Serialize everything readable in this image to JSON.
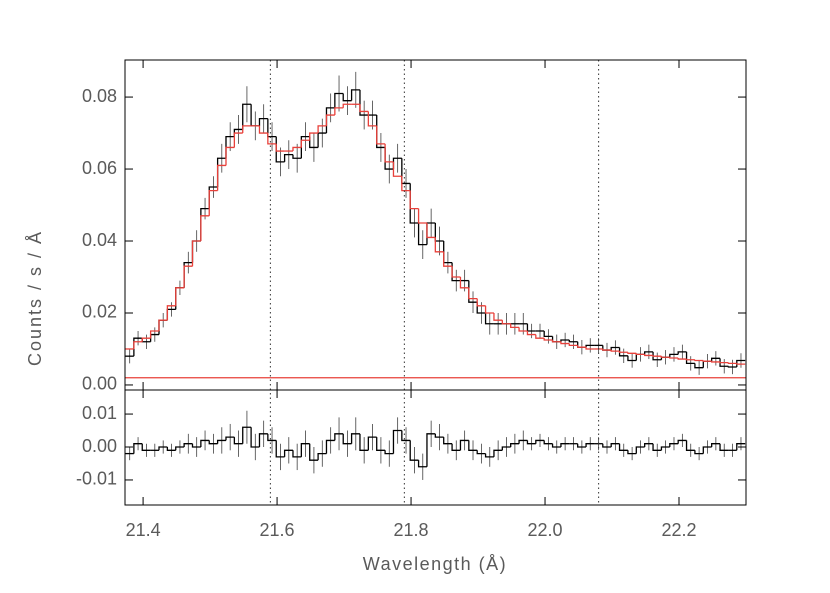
{
  "chart_data": [
    {
      "type": "step",
      "ylabel": "Counts / s / Å",
      "xlim": [
        21.373,
        22.3
      ],
      "ylim": [
        -0.0014,
        0.0903
      ],
      "yticks": [
        {
          "value": 0,
          "label": "0.00"
        },
        {
          "value": 0.02,
          "label": "0.02"
        },
        {
          "value": 0.04,
          "label": "0.04"
        },
        {
          "value": 0.06,
          "label": "0.06"
        },
        {
          "value": 0.08,
          "label": "0.08"
        }
      ],
      "vlines": [
        21.59,
        21.79,
        22.08
      ],
      "hlines": [
        {
          "value": 0.002,
          "color": "#e8403a"
        }
      ],
      "x": [
        21.38,
        21.3925,
        21.405,
        21.4175,
        21.43,
        21.4425,
        21.455,
        21.4675,
        21.48,
        21.4925,
        21.505,
        21.5175,
        21.53,
        21.5425,
        21.555,
        21.5675,
        21.58,
        21.5925,
        21.605,
        21.6175,
        21.63,
        21.6425,
        21.655,
        21.6675,
        21.68,
        21.6925,
        21.705,
        21.7175,
        21.73,
        21.7425,
        21.755,
        21.7675,
        21.78,
        21.7925,
        21.805,
        21.8175,
        21.83,
        21.8425,
        21.855,
        21.8675,
        21.88,
        21.8925,
        21.905,
        21.9175,
        21.93,
        21.9425,
        21.955,
        21.9675,
        21.98,
        21.9925,
        22.005,
        22.0175,
        22.03,
        22.0425,
        22.055,
        22.0675,
        22.08,
        22.0925,
        22.105,
        22.1175,
        22.13,
        22.1425,
        22.155,
        22.1675,
        22.18,
        22.1925,
        22.205,
        22.2175,
        22.23,
        22.2425,
        22.255,
        22.2675,
        22.28,
        22.2925
      ],
      "series": [
        {
          "color": "#000000",
          "values": [
            0.008,
            0.013,
            0.012,
            0.014,
            0.018,
            0.021,
            0.027,
            0.034,
            0.04,
            0.049,
            0.055,
            0.063,
            0.069,
            0.071,
            0.078,
            0.072,
            0.074,
            0.069,
            0.062,
            0.064,
            0.063,
            0.069,
            0.066,
            0.07,
            0.077,
            0.081,
            0.079,
            0.082,
            0.075,
            0.075,
            0.066,
            0.06,
            0.063,
            0.056,
            0.045,
            0.039,
            0.045,
            0.04,
            0.034,
            0.029,
            0.029,
            0.023,
            0.02,
            0.017,
            0.017,
            0.017,
            0.017,
            0.017,
            0.015,
            0.015,
            0.0135,
            0.012,
            0.0125,
            0.012,
            0.0105,
            0.011,
            0.011,
            0.0097,
            0.0104,
            0.0081,
            0.0068,
            0.0085,
            0.0092,
            0.007,
            0.0077,
            0.0085,
            0.0092,
            0.006,
            0.0048,
            0.0066,
            0.0074,
            0.0052,
            0.005,
            0.0068
          ],
          "errors": [
            0.002,
            0.002,
            0.002,
            0.002,
            0.002,
            0.002,
            0.002,
            0.003,
            0.003,
            0.003,
            0.003,
            0.004,
            0.004,
            0.004,
            0.005,
            0.004,
            0.004,
            0.004,
            0.004,
            0.004,
            0.004,
            0.004,
            0.004,
            0.004,
            0.004,
            0.005,
            0.004,
            0.005,
            0.004,
            0.004,
            0.004,
            0.004,
            0.004,
            0.004,
            0.004,
            0.004,
            0.004,
            0.004,
            0.003,
            0.003,
            0.003,
            0.003,
            0.003,
            0.003,
            0.003,
            0.003,
            0.003,
            0.003,
            0.002,
            0.002,
            0.002,
            0.002,
            0.002,
            0.002,
            0.002,
            0.002,
            0.002,
            0.002,
            0.002,
            0.002,
            0.002,
            0.002,
            0.002,
            0.002,
            0.002,
            0.002,
            0.002,
            0.002,
            0.002,
            0.002,
            0.002,
            0.002,
            0.002,
            0.002
          ]
        },
        {
          "color": "#e8403a",
          "values": [
            0.01,
            0.012,
            0.013,
            0.015,
            0.018,
            0.022,
            0.027,
            0.033,
            0.04,
            0.047,
            0.054,
            0.061,
            0.066,
            0.07,
            0.072,
            0.072,
            0.07,
            0.067,
            0.065,
            0.065,
            0.066,
            0.068,
            0.07,
            0.072,
            0.075,
            0.077,
            0.078,
            0.078,
            0.076,
            0.072,
            0.067,
            0.062,
            0.058,
            0.054,
            0.049,
            0.045,
            0.041,
            0.037,
            0.033,
            0.03,
            0.027,
            0.024,
            0.022,
            0.02,
            0.018,
            0.017,
            0.016,
            0.015,
            0.014,
            0.013,
            0.0125,
            0.012,
            0.0115,
            0.011,
            0.0105,
            0.01,
            0.01,
            0.0097,
            0.0094,
            0.0091,
            0.0088,
            0.0085,
            0.0082,
            0.008,
            0.0077,
            0.0075,
            0.0072,
            0.007,
            0.0068,
            0.0066,
            0.0064,
            0.0062,
            0.006,
            0.0058
          ]
        }
      ]
    },
    {
      "type": "step",
      "xlabel": "Wavelength (Å)",
      "xlim": [
        21.373,
        22.3
      ],
      "ylim": [
        -0.0176,
        0.0173
      ],
      "xticks": [
        21.4,
        21.6,
        21.8,
        {
          "value": 22.0,
          "label": "22.0"
        },
        22.2
      ],
      "yticks": [
        {
          "value": -0.01,
          "label": "-0.01"
        },
        {
          "value": 0,
          "label": "0.00"
        },
        {
          "value": 0.01,
          "label": "0.01"
        }
      ],
      "x": [
        21.38,
        21.3925,
        21.405,
        21.4175,
        21.43,
        21.4425,
        21.455,
        21.4675,
        21.48,
        21.4925,
        21.505,
        21.5175,
        21.53,
        21.5425,
        21.555,
        21.5675,
        21.58,
        21.5925,
        21.605,
        21.6175,
        21.63,
        21.6425,
        21.655,
        21.6675,
        21.68,
        21.6925,
        21.705,
        21.7175,
        21.73,
        21.7425,
        21.755,
        21.7675,
        21.78,
        21.7925,
        21.805,
        21.8175,
        21.83,
        21.8425,
        21.855,
        21.8675,
        21.88,
        21.8925,
        21.905,
        21.9175,
        21.93,
        21.9425,
        21.955,
        21.9675,
        21.98,
        21.9925,
        22.005,
        22.0175,
        22.03,
        22.0425,
        22.055,
        22.0675,
        22.08,
        22.0925,
        22.105,
        22.1175,
        22.13,
        22.1425,
        22.155,
        22.1675,
        22.18,
        22.1925,
        22.205,
        22.2175,
        22.23,
        22.2425,
        22.255,
        22.2675,
        22.28,
        22.2925
      ],
      "series": [
        {
          "color": "#000000",
          "values": [
            -0.002,
            0.001,
            -0.001,
            -0.001,
            0,
            -0.001,
            0,
            0.001,
            0,
            0.002,
            0.001,
            0.002,
            0.003,
            0.001,
            0.006,
            0,
            0.004,
            0.002,
            -0.003,
            -0.001,
            -0.003,
            0.001,
            -0.004,
            -0.002,
            0.002,
            0.004,
            0.001,
            0.004,
            -0.001,
            0.003,
            -0.001,
            -0.002,
            0.005,
            0.002,
            -0.004,
            -0.006,
            0.004,
            0.003,
            0.001,
            -0.001,
            0.002,
            -0.001,
            -0.002,
            -0.003,
            -0.001,
            0,
            0.001,
            0.002,
            0.001,
            0.002,
            0.001,
            0,
            0.001,
            0.001,
            0,
            0.001,
            0.001,
            0,
            0.001,
            -0.001,
            -0.002,
            0,
            0.001,
            -0.001,
            0,
            0.001,
            0.002,
            -0.001,
            -0.002,
            0,
            0.001,
            -0.001,
            -0.001,
            0.001
          ],
          "errors": [
            0.002,
            0.002,
            0.002,
            0.002,
            0.002,
            0.002,
            0.002,
            0.003,
            0.003,
            0.003,
            0.003,
            0.004,
            0.004,
            0.004,
            0.005,
            0.004,
            0.004,
            0.004,
            0.004,
            0.004,
            0.004,
            0.004,
            0.004,
            0.004,
            0.004,
            0.005,
            0.004,
            0.005,
            0.004,
            0.004,
            0.004,
            0.004,
            0.004,
            0.004,
            0.004,
            0.004,
            0.004,
            0.004,
            0.003,
            0.003,
            0.003,
            0.003,
            0.003,
            0.003,
            0.003,
            0.003,
            0.003,
            0.003,
            0.002,
            0.002,
            0.002,
            0.002,
            0.002,
            0.002,
            0.002,
            0.002,
            0.002,
            0.002,
            0.002,
            0.002,
            0.002,
            0.002,
            0.002,
            0.002,
            0.002,
            0.002,
            0.002,
            0.002,
            0.002,
            0.002,
            0.002,
            0.002,
            0.002,
            0.002
          ]
        }
      ]
    }
  ]
}
